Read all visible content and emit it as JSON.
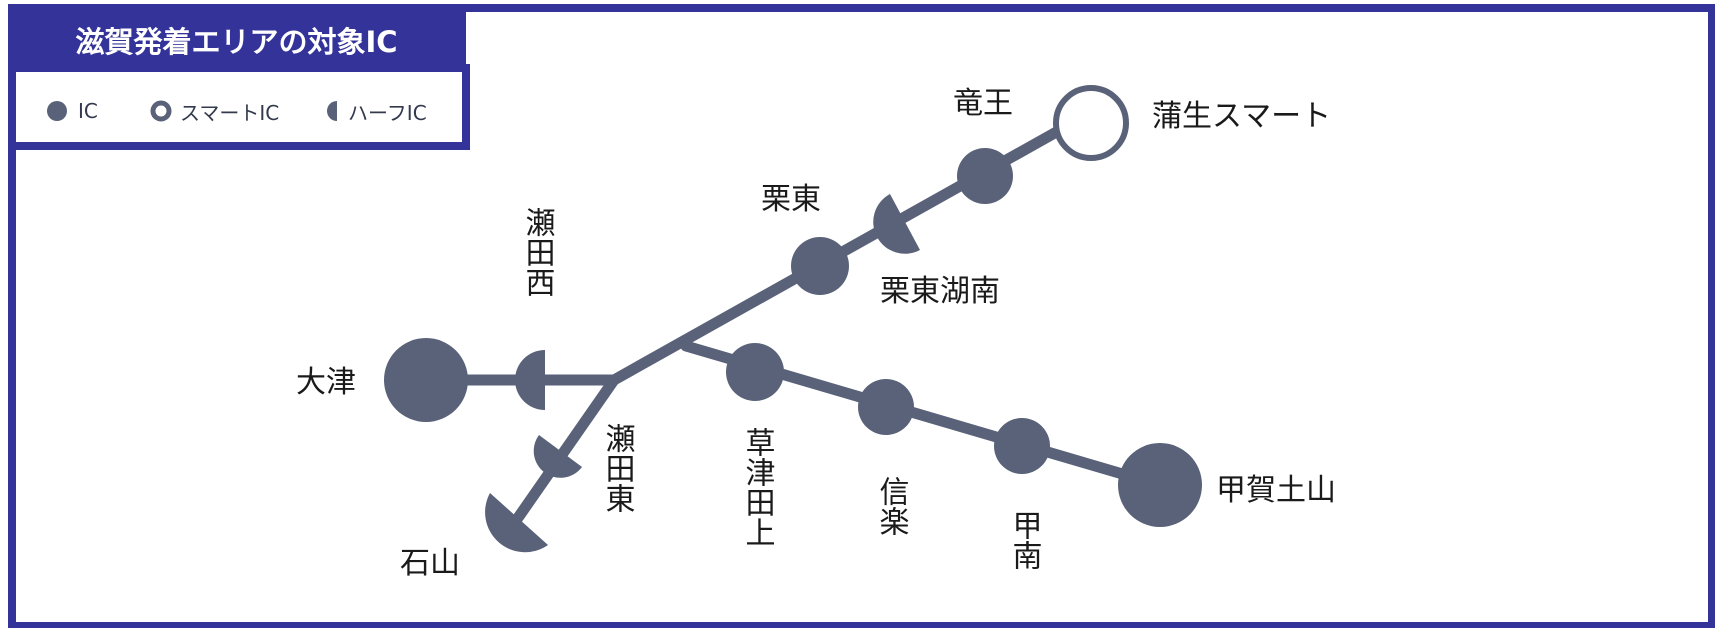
{
  "legend": {
    "title": "滋賀発着エリアの対象IC",
    "items": [
      {
        "symbol": "filled-circle",
        "label": "IC"
      },
      {
        "symbol": "ring",
        "label": "スマートIC"
      },
      {
        "symbol": "half-circle",
        "label": "ハーフIC"
      }
    ]
  },
  "interchanges": {
    "gamo_smart": "蒲生スマート",
    "ryuo": "竜王",
    "ritto": "栗東",
    "ritto_konan": "栗東湖南",
    "seta_nishi": "瀬田西",
    "otsu": "大津",
    "ishiyama": "石山",
    "seta_higashi": "瀬田東",
    "kusatsu_tanakami": "草津田上",
    "shigaraki": "信楽",
    "konan": "甲南",
    "koka_tsuchiyama": "甲賀土山"
  },
  "colors": {
    "frame": "#333399",
    "node": "#596278",
    "text": "#1a1a1a"
  }
}
